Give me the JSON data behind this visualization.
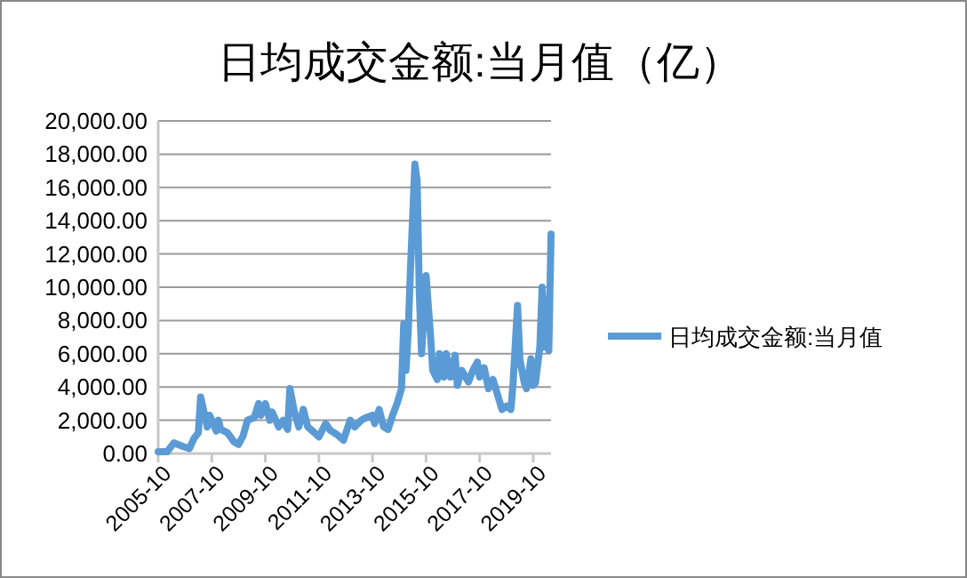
{
  "chart_data": {
    "type": "line",
    "title": "日均成交金额:当月值（亿）",
    "x": [
      "2005-10",
      "2006-02",
      "2006-05",
      "2006-09",
      "2006-12",
      "2007-02",
      "2007-04",
      "2007-05",
      "2007-06",
      "2007-08",
      "2007-09",
      "2007-10",
      "2007-12",
      "2008-01",
      "2008-02",
      "2008-05",
      "2008-08",
      "2008-10",
      "2008-12",
      "2009-02",
      "2009-05",
      "2009-07",
      "2009-08",
      "2009-10",
      "2009-12",
      "2010-01",
      "2010-04",
      "2010-06",
      "2010-08",
      "2010-09",
      "2010-11",
      "2011-01",
      "2011-03",
      "2011-05",
      "2011-08",
      "2011-10",
      "2012-01",
      "2012-03",
      "2012-06",
      "2012-09",
      "2012-12",
      "2013-02",
      "2013-05",
      "2013-07",
      "2013-10",
      "2013-11",
      "2014-01",
      "2014-03",
      "2014-05",
      "2014-07",
      "2014-09",
      "2014-11",
      "2014-12",
      "2015-01",
      "2015-02",
      "2015-03",
      "2015-05",
      "2015-06",
      "2015-07",
      "2015-08",
      "2015-10",
      "2015-12",
      "2016-01",
      "2016-03",
      "2016-04",
      "2016-06",
      "2016-07",
      "2016-09",
      "2016-11",
      "2016-12",
      "2017-02",
      "2017-05",
      "2017-07",
      "2017-09",
      "2017-10",
      "2017-12",
      "2018-02",
      "2018-04",
      "2018-06",
      "2018-08",
      "2018-10",
      "2018-12",
      "2019-01",
      "2019-03",
      "2019-04",
      "2019-06",
      "2019-07",
      "2019-09",
      "2019-10",
      "2019-11",
      "2020-01",
      "2020-02",
      "2020-03",
      "2020-04",
      "2020-05",
      "2020-06"
    ],
    "series": [
      {
        "name": "日均成交金额:当月值",
        "color": "#5b9bd5",
        "values": [
          100,
          100,
          640,
          430,
          300,
          900,
          1250,
          3400,
          2800,
          1600,
          2300,
          2000,
          1350,
          2000,
          1450,
          1250,
          700,
          550,
          1050,
          2000,
          2150,
          3000,
          2300,
          3000,
          2000,
          2500,
          1600,
          2000,
          1450,
          3900,
          2500,
          1600,
          2650,
          1600,
          1250,
          1000,
          1800,
          1400,
          1150,
          800,
          2000,
          1600,
          2000,
          2150,
          2300,
          1800,
          2650,
          1600,
          1450,
          2300,
          3000,
          3900,
          7800,
          5000,
          7300,
          11000,
          17400,
          16400,
          9600,
          6000,
          10700,
          7100,
          5000,
          4450,
          6000,
          4600,
          6000,
          4600,
          5900,
          4100,
          5000,
          4300,
          5000,
          5500,
          4600,
          5150,
          3900,
          4450,
          3550,
          2650,
          2850,
          2650,
          4250,
          8900,
          5700,
          4250,
          3900,
          5700,
          4100,
          4250,
          6400,
          10000,
          6400,
          9300,
          6200,
          13200
        ]
      }
    ],
    "xlim": [
      "2005-10",
      "2020-06"
    ],
    "xticks": [
      {
        "value": "2005-10",
        "label": "2005-10"
      },
      {
        "value": "2007-10",
        "label": "2007-10"
      },
      {
        "value": "2009-10",
        "label": "2009-10"
      },
      {
        "value": "2011-10",
        "label": "2011-10"
      },
      {
        "value": "2013-10",
        "label": "2013-10"
      },
      {
        "value": "2015-10",
        "label": "2015-10"
      },
      {
        "value": "2017-10",
        "label": "2017-10"
      },
      {
        "value": "2019-10",
        "label": "2019-10"
      }
    ],
    "ylim": [
      0,
      20000
    ],
    "yticks": [
      {
        "value": 0,
        "label": "0.00"
      },
      {
        "value": 2000,
        "label": "2,000.00"
      },
      {
        "value": 4000,
        "label": "4,000.00"
      },
      {
        "value": 6000,
        "label": "6,000.00"
      },
      {
        "value": 8000,
        "label": "8,000.00"
      },
      {
        "value": 10000,
        "label": "10,000.00"
      },
      {
        "value": 12000,
        "label": "12,000.00"
      },
      {
        "value": 14000,
        "label": "14,000.00"
      },
      {
        "value": 16000,
        "label": "16,000.00"
      },
      {
        "value": 18000,
        "label": "18,000.00"
      },
      {
        "value": 20000,
        "label": "20,000.00"
      }
    ],
    "grid": "y",
    "legend": "right",
    "marker": "none",
    "line_style": "solid"
  }
}
